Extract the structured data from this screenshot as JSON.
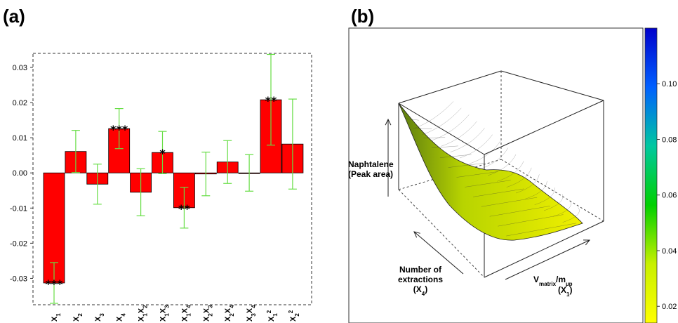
{
  "panel_a_label": "(a)",
  "panel_b_label": "(b)",
  "chart_data": [
    {
      "type": "bar",
      "categories": [
        "X1",
        "X2",
        "X3",
        "X4",
        "X1X2",
        "X1X3",
        "X1X4",
        "X2X3",
        "X2X4",
        "X3X4",
        "X1²",
        "X2²"
      ],
      "values": [
        -0.0313,
        0.0061,
        -0.0032,
        0.0126,
        -0.0055,
        0.0058,
        -0.0099,
        -0.0003,
        0.0031,
        0.0,
        0.0208,
        0.0082
      ],
      "errors": [
        0.0058,
        0.006,
        0.0057,
        0.0057,
        0.0067,
        0.006,
        0.0058,
        0.0062,
        0.0061,
        0.0052,
        0.0129,
        0.0128
      ],
      "significance": [
        "***",
        "",
        "",
        "***",
        "",
        "*",
        "**",
        "",
        "",
        "",
        "**",
        ""
      ],
      "ylim": [
        -0.0375,
        0.034
      ],
      "yticks": [
        -0.03,
        -0.02,
        -0.01,
        0.0,
        0.01,
        0.02,
        0.03
      ],
      "ytick_labels": [
        "-0.03",
        "-0.02",
        "-0.01",
        "0.00",
        "0.01",
        "0.02",
        "0.03"
      ],
      "bar_color": "#ff0000",
      "error_color": "#66dd44",
      "frame": "dashed"
    },
    {
      "type": "surface",
      "z_label_lines": [
        "Naphtalene",
        "(Peak area)"
      ],
      "x4_label_lines": [
        "Number of",
        "extractions",
        "(X4)"
      ],
      "x1_label_main": "V",
      "x1_label_sub1": "matrix",
      "x1_label_sep": "/m",
      "x1_label_sub2": "µp",
      "x1_label_var": "(X1)",
      "colorbar_ticks": [
        0.02,
        0.04,
        0.06,
        0.08,
        0.1
      ],
      "colorbar_tick_labels": [
        "0.02",
        "0.04",
        "0.06",
        "0.08",
        "0.10"
      ],
      "colorbar_range": [
        0.014,
        0.12
      ],
      "colorbar_colors": [
        "#ffff00",
        "#c8f000",
        "#00d000",
        "#00c8a0",
        "#0060ff",
        "#0000cc"
      ]
    }
  ]
}
